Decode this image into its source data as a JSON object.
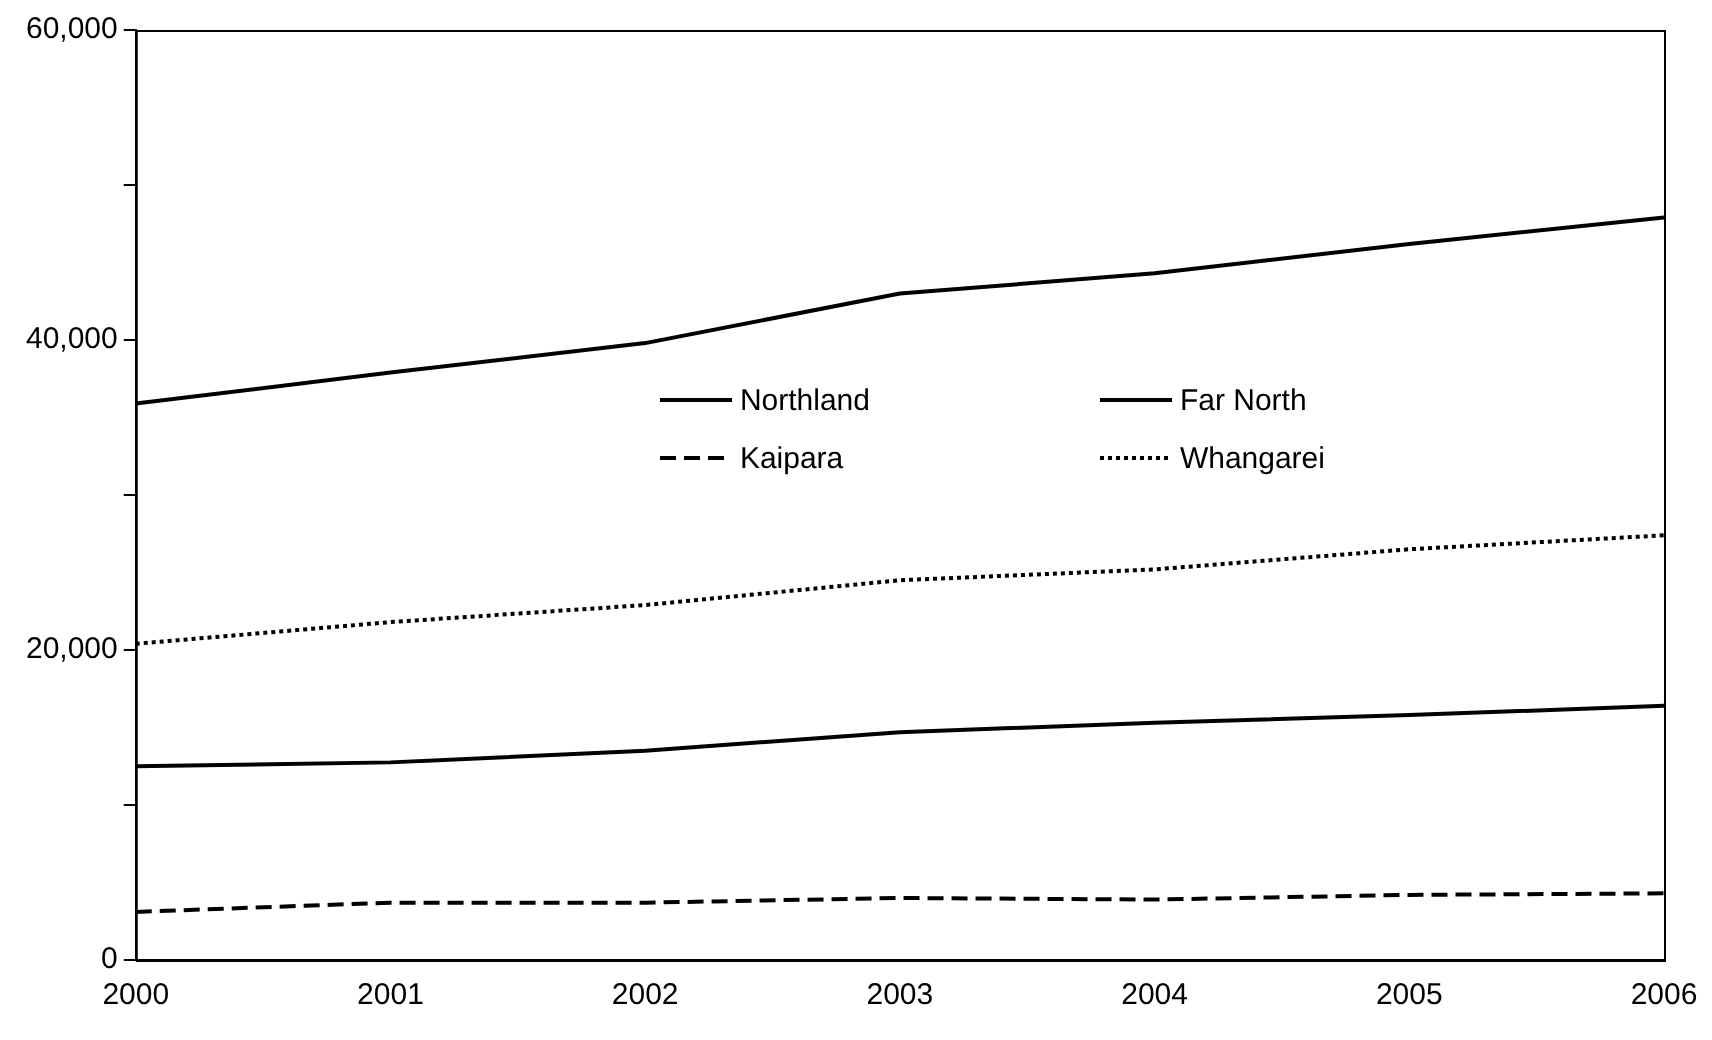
{
  "chart_data": {
    "type": "line",
    "categories": [
      "2000",
      "2001",
      "2002",
      "2003",
      "2004",
      "2005",
      "2006"
    ],
    "series": [
      {
        "name": "Northland",
        "color": "#000000",
        "line_style": "solid",
        "values": [
          35900,
          37900,
          39800,
          43000,
          44300,
          46200,
          47900
        ]
      },
      {
        "name": "Far North",
        "color": "#000000",
        "line_style": "solid",
        "values": [
          12500,
          12750,
          13500,
          14700,
          15300,
          15800,
          16400
        ]
      },
      {
        "name": "Kaipara",
        "color": "#000000",
        "line_style": "dashed",
        "values": [
          3100,
          3700,
          3700,
          4000,
          3900,
          4200,
          4300
        ]
      },
      {
        "name": "Whangarei",
        "color": "#000000",
        "line_style": "dotted",
        "values": [
          20400,
          21800,
          22900,
          24500,
          25200,
          26500,
          27400
        ]
      }
    ],
    "ylim": [
      0,
      60000
    ],
    "yticks": [
      {
        "value": 0,
        "label": "0"
      },
      {
        "value": 10000,
        "label": null
      },
      {
        "value": 20000,
        "label": "20,000"
      },
      {
        "value": 30000,
        "label": null
      },
      {
        "value": 40000,
        "label": "40,000"
      },
      {
        "value": 50000,
        "label": null
      },
      {
        "value": 60000,
        "label": "60,000"
      }
    ],
    "grid": false,
    "legend": "center",
    "marker": "none"
  }
}
